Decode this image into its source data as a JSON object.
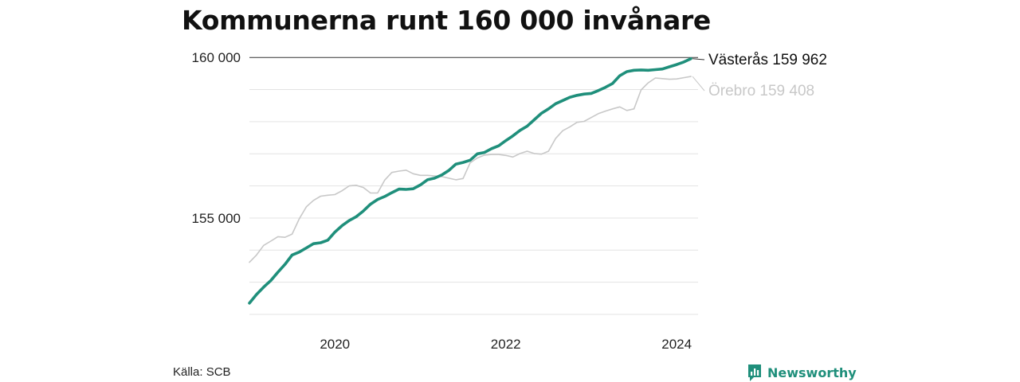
{
  "title": "Kommunerna runt 160 000 invånare",
  "source": "Källa: SCB",
  "brand": {
    "name": "Newsworthy",
    "logo_icon": "chart-speech-bubble-icon"
  },
  "colors": {
    "vasteras": "#1f8f7b",
    "orebro": "#c8c8c8",
    "grid": "#e3e3e3",
    "axis_text": "#222222",
    "brand": "#1f8f7b"
  },
  "chart_data": {
    "type": "line",
    "xlim": [
      2019.0,
      2024.25
    ],
    "ylim": [
      152000,
      160600
    ],
    "x_ticks": [
      {
        "value": 2020,
        "label": "2020"
      },
      {
        "value": 2022,
        "label": "2022"
      },
      {
        "value": 2024,
        "label": "2024"
      }
    ],
    "y_ticks": [
      {
        "value": 155000,
        "label": "155 000"
      },
      {
        "value": 160000,
        "label": "160 000"
      }
    ],
    "grid_step": 1000,
    "reference_line": 160000,
    "series": [
      {
        "name": "Örebro",
        "end_label": "Örebro 159 408",
        "color": "#c8c8c8",
        "x_start": 2019.0,
        "x_step": 0.08333,
        "values": [
          153620,
          153850,
          154150,
          154280,
          154420,
          154400,
          154500,
          154980,
          155350,
          155550,
          155680,
          155710,
          155730,
          155850,
          156000,
          156020,
          155950,
          155780,
          155780,
          156180,
          156420,
          156460,
          156490,
          156380,
          156330,
          156330,
          156310,
          156290,
          156240,
          156190,
          156230,
          156720,
          156870,
          156960,
          156980,
          156980,
          156950,
          156900,
          157010,
          157080,
          157010,
          156990,
          157080,
          157480,
          157720,
          157840,
          157980,
          158010,
          158130,
          158250,
          158330,
          158400,
          158460,
          158350,
          158400,
          158990,
          159210,
          159360,
          159340,
          159320,
          159330,
          159370,
          159408
        ]
      },
      {
        "name": "Västerås",
        "end_label": "Västerås 159 962",
        "color": "#1f8f7b",
        "x_start": 2019.0,
        "x_step": 0.08333,
        "values": [
          152350,
          152620,
          152850,
          153050,
          153310,
          153560,
          153850,
          153940,
          154070,
          154200,
          154230,
          154310,
          154560,
          154760,
          154920,
          155040,
          155220,
          155430,
          155580,
          155670,
          155790,
          155900,
          155890,
          155910,
          156030,
          156190,
          156240,
          156340,
          156480,
          156680,
          156730,
          156800,
          157000,
          157040,
          157160,
          157250,
          157410,
          157560,
          157730,
          157860,
          158060,
          158260,
          158400,
          158560,
          158660,
          158760,
          158820,
          158860,
          158880,
          158970,
          159070,
          159190,
          159430,
          159560,
          159600,
          159610,
          159600,
          159620,
          159640,
          159710,
          159780,
          159860,
          159962
        ]
      }
    ]
  }
}
